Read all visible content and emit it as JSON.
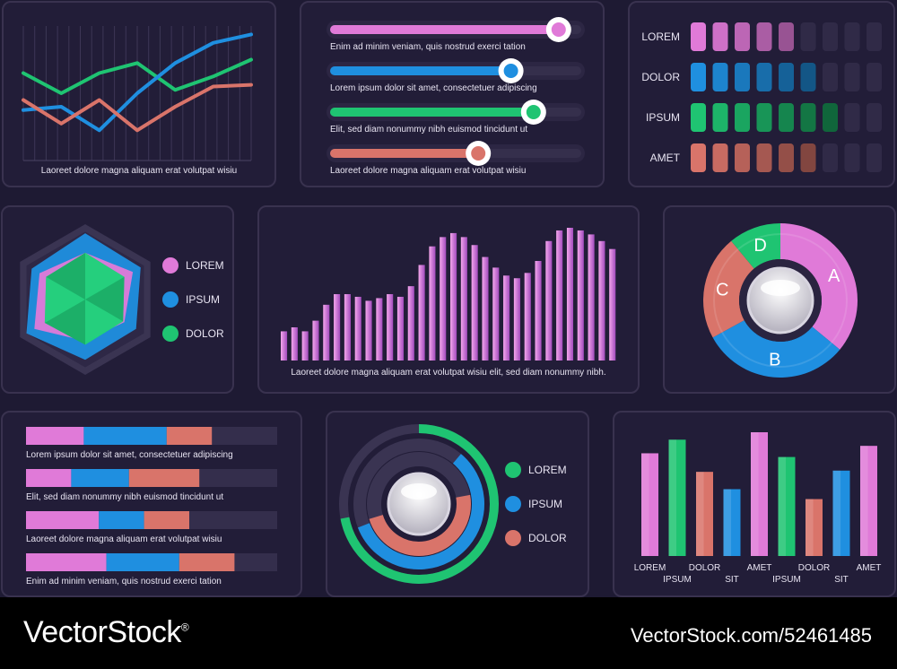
{
  "colors": {
    "pink": "#e07ad8",
    "blue": "#1f8fe0",
    "green": "#1fc472",
    "red": "#d9746a",
    "panel": "#221d38",
    "track": "#352f4c"
  },
  "chart_data": [
    {
      "type": "line",
      "caption": "Laoreet dolore magna aliquam erat volutpat wisiu",
      "x": [
        1,
        2,
        3,
        4,
        5,
        6,
        7
      ],
      "series": [
        {
          "color": "green",
          "values": [
            52,
            40,
            52,
            58,
            42,
            50,
            60
          ]
        },
        {
          "color": "blue",
          "values": [
            30,
            32,
            18,
            40,
            58,
            70,
            75
          ]
        },
        {
          "color": "red",
          "values": [
            36,
            22,
            36,
            18,
            32,
            44,
            45
          ]
        }
      ],
      "ylim": [
        0,
        80
      ]
    },
    {
      "type": "bar",
      "subtype": "sliders",
      "items": [
        {
          "label": "Enim ad minim veniam, quis nostrud exerci tation",
          "value": 0.91,
          "color": "pink"
        },
        {
          "label": "Lorem ipsum dolor sit amet, consectetuer adipiscing",
          "value": 0.72,
          "color": "blue"
        },
        {
          "label": "Elit, sed diam nonummy nibh euismod tincidunt ut",
          "value": 0.81,
          "color": "green"
        },
        {
          "label": "Laoreet dolore magna aliquam erat volutpat wisiu",
          "value": 0.59,
          "color": "red"
        }
      ]
    },
    {
      "type": "bar",
      "subtype": "level-meter",
      "segments": 9,
      "rows": [
        {
          "label": "LOREM",
          "value": 5,
          "color": "pink"
        },
        {
          "label": "DOLOR",
          "value": 6,
          "color": "blue"
        },
        {
          "label": "IPSUM",
          "value": 7,
          "color": "green"
        },
        {
          "label": "AMET",
          "value": 6,
          "color": "red"
        }
      ]
    },
    {
      "type": "radar",
      "legend": [
        {
          "label": "LOREM",
          "color": "pink"
        },
        {
          "label": "IPSUM",
          "color": "blue"
        },
        {
          "label": "DOLOR",
          "color": "green"
        }
      ],
      "series": [
        {
          "color": "pink",
          "values": [
            0.62,
            0.73,
            0.6,
            0.55,
            0.78,
            0.7
          ]
        },
        {
          "color": "blue",
          "values": [
            0.88,
            0.85,
            0.78,
            0.8,
            0.9,
            0.82
          ]
        },
        {
          "color": "green",
          "values": [
            0.62,
            0.6,
            0.58,
            0.6,
            0.62,
            0.6
          ]
        }
      ]
    },
    {
      "type": "bar",
      "caption": "Laoreet dolore magna aliquam erat volutpat wisiu elit, sed diam nonummy nibh.",
      "values": [
        0.22,
        0.25,
        0.22,
        0.3,
        0.42,
        0.5,
        0.5,
        0.48,
        0.45,
        0.47,
        0.5,
        0.48,
        0.56,
        0.72,
        0.86,
        0.93,
        0.96,
        0.93,
        0.87,
        0.78,
        0.7,
        0.64,
        0.62,
        0.66,
        0.75,
        0.9,
        0.98,
        1.0,
        0.98,
        0.95,
        0.9,
        0.84
      ],
      "color": "pink"
    },
    {
      "type": "pie",
      "subtype": "donut",
      "slices": [
        {
          "label": "A",
          "value": 36,
          "color": "pink"
        },
        {
          "label": "B",
          "value": 31,
          "color": "blue"
        },
        {
          "label": "C",
          "value": 22,
          "color": "red"
        },
        {
          "label": "D",
          "value": 11,
          "color": "green"
        }
      ]
    },
    {
      "type": "bar",
      "subtype": "stacked-horizontal",
      "rows": [
        {
          "label": "Lorem ipsum dolor sit amet, consectetuer adipiscing",
          "values": [
            0.23,
            0.33,
            0.18
          ]
        },
        {
          "label": "Elit, sed diam nonummy nibh euismod tincidunt ut",
          "values": [
            0.18,
            0.23,
            0.28
          ]
        },
        {
          "label": "Laoreet dolore magna aliquam erat volutpat wisiu",
          "values": [
            0.29,
            0.18,
            0.18
          ]
        },
        {
          "label": "Enim ad minim veniam, quis nostrud exerci tation",
          "values": [
            0.32,
            0.29,
            0.22
          ]
        }
      ],
      "colors": [
        "pink",
        "blue",
        "red"
      ]
    },
    {
      "type": "pie",
      "subtype": "concentric-rings",
      "legend": [
        {
          "label": "LOREM",
          "color": "green"
        },
        {
          "label": "IPSUM",
          "color": "blue"
        },
        {
          "label": "DOLOR",
          "color": "red"
        }
      ],
      "rings": [
        {
          "color": "green",
          "value": 0.72
        },
        {
          "color": "blue",
          "value": 0.58
        },
        {
          "color": "red",
          "value": 0.48
        }
      ]
    },
    {
      "type": "bar",
      "categories": [
        "LOREM",
        "IPSUM",
        "DOLOR",
        "SIT",
        "AMET",
        "IPSUM",
        "DOLOR",
        "SIT",
        "AMET"
      ],
      "values": [
        0.83,
        0.94,
        0.68,
        0.54,
        1.0,
        0.8,
        0.46,
        0.69,
        0.89
      ],
      "colors": [
        "pink",
        "green",
        "red",
        "blue",
        "pink",
        "green",
        "red",
        "blue",
        "pink"
      ]
    }
  ],
  "footer": {
    "brand": "VectorStock",
    "url": "VectorStock.com/52461485",
    "brand_mark": "®"
  }
}
